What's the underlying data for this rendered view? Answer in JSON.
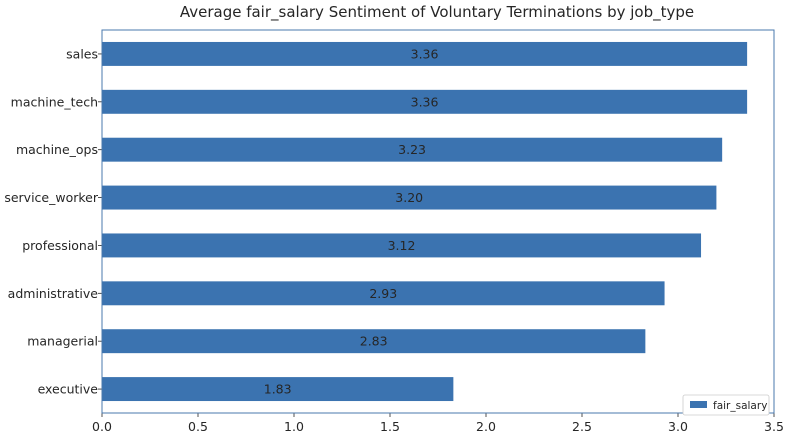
{
  "chart_data": {
    "type": "bar",
    "orientation": "horizontal",
    "title": "Average fair_salary Sentiment of Voluntary Terminations by job_type",
    "categories": [
      "sales",
      "machine_tech",
      "machine_ops",
      "service_worker",
      "professional",
      "administrative",
      "managerial",
      "executive"
    ],
    "series": [
      {
        "name": "fair_salary",
        "values": [
          3.36,
          3.36,
          3.23,
          3.2,
          3.12,
          2.93,
          2.83,
          1.83
        ],
        "labels": [
          "3.36",
          "3.36",
          "3.23",
          "3.20",
          "3.12",
          "2.93",
          "2.83",
          "1.83"
        ],
        "color": "#3b73b0"
      }
    ],
    "xlim": [
      0,
      3.5
    ],
    "xticks": [
      0.0,
      0.5,
      1.0,
      1.5,
      2.0,
      2.5,
      3.0,
      3.5
    ],
    "xtick_labels": [
      "0.0",
      "0.5",
      "1.0",
      "1.5",
      "2.0",
      "2.5",
      "3.0",
      "3.5"
    ],
    "xlabel": "",
    "ylabel": "",
    "grid": false,
    "legend": {
      "position": "bottom-right",
      "entries": [
        "fair_salary"
      ]
    },
    "axis_color": "#4a78ad"
  }
}
